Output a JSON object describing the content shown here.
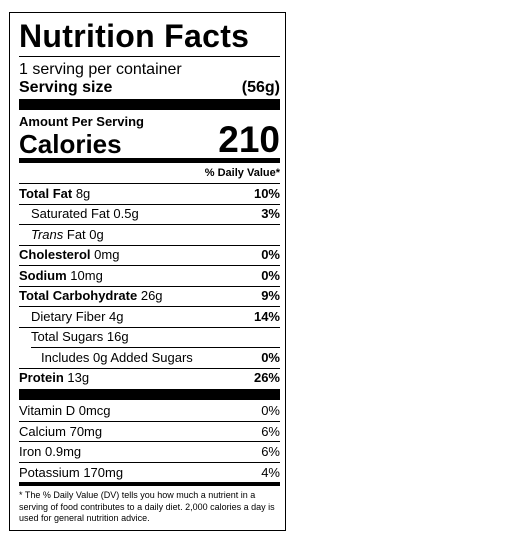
{
  "title": "Nutrition Facts",
  "servings": "1 serving per container",
  "serving_size": {
    "label": "Serving size",
    "value": "(56g)"
  },
  "amount_per_serving": "Amount Per Serving",
  "calories": {
    "label": "Calories",
    "value": 210
  },
  "daily_value_header": "% Daily Value*",
  "nutrients": [
    {
      "name": "Total Fat",
      "amount": "8g",
      "dv": "10%"
    },
    {
      "name": "Saturated Fat",
      "amount": "0.5g",
      "dv": "3%"
    },
    {
      "name": "Trans",
      "amount": "Fat 0g"
    },
    {
      "name": "Cholesterol",
      "amount": "0mg",
      "dv": "0%"
    },
    {
      "name": "Sodium",
      "amount": "10mg",
      "dv": "0%"
    },
    {
      "name": "Total Carbohydrate",
      "amount": "26g",
      "dv": "9%"
    },
    {
      "name": "Dietary Fiber",
      "amount": "4g",
      "dv": "14%"
    },
    {
      "name": "Total Sugars",
      "amount": "16g"
    },
    {
      "name": "Includes 0g Added Sugars",
      "dv": "0%"
    },
    {
      "name": "Protein",
      "amount": "13g",
      "dv": "26%"
    }
  ],
  "vitamins": [
    {
      "name": "Vitamin D",
      "amount": "0mcg",
      "dv": "0%"
    },
    {
      "name": "Calcium",
      "amount": "70mg",
      "dv": "6%"
    },
    {
      "name": "Iron",
      "amount": "0.9mg",
      "dv": "6%"
    },
    {
      "name": "Potassium",
      "amount": "170mg",
      "dv": "4%"
    }
  ],
  "footnote": "* The % Daily Value (DV) tells you how much a nutrient in a serving of food contributes to a daily diet. 2,000 calories a day is used for general nutrition advice."
}
